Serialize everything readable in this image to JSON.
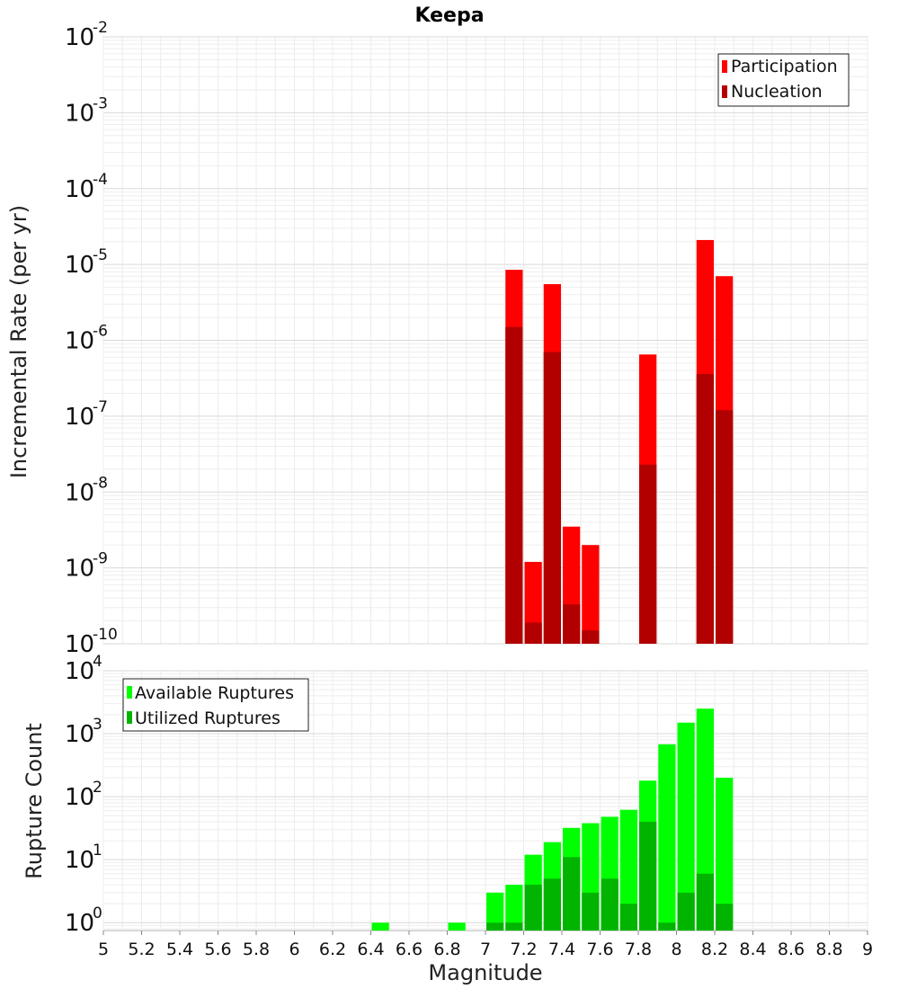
{
  "chart_data": [
    {
      "type": "bar",
      "title": "Keepa",
      "ylabel": "Incremental Rate (per yr)",
      "xlabel": "",
      "yscale": "log",
      "ylim": [
        1e-10,
        0.01
      ],
      "xlim": [
        5,
        9
      ],
      "bin_width": 0.1,
      "y_tick_labels": [
        {
          "base": "10",
          "exp": "-2"
        },
        {
          "base": "10",
          "exp": "-3"
        },
        {
          "base": "10",
          "exp": "-4"
        },
        {
          "base": "10",
          "exp": "-5"
        },
        {
          "base": "10",
          "exp": "-6"
        },
        {
          "base": "10",
          "exp": "-7"
        },
        {
          "base": "10",
          "exp": "-8"
        },
        {
          "base": "10",
          "exp": "-9"
        },
        {
          "base": "10",
          "exp": "-10"
        }
      ],
      "legend_position": "top-right",
      "series": [
        {
          "name": "Participation",
          "color": "#ff0000",
          "x": [
            7.15,
            7.25,
            7.35,
            7.45,
            7.55,
            7.85,
            8.15,
            8.25
          ],
          "values": [
            8.5e-06,
            1.2e-09,
            5.5e-06,
            3.5e-09,
            2e-09,
            6.5e-07,
            2.1e-05,
            7e-06
          ]
        },
        {
          "name": "Nucleation",
          "color": "#b20000",
          "x": [
            7.15,
            7.25,
            7.35,
            7.45,
            7.55,
            7.85,
            8.15,
            8.25
          ],
          "values": [
            1.5e-06,
            1.9e-10,
            7e-07,
            3.3e-10,
            1.5e-10,
            2.3e-08,
            3.6e-07,
            1.2e-07
          ]
        }
      ]
    },
    {
      "type": "bar",
      "title": "",
      "ylabel": "Rupture Count",
      "xlabel": "Magnitude",
      "yscale": "log",
      "ylim": [
        0.75,
        10000
      ],
      "xlim": [
        5,
        9
      ],
      "bin_width": 0.1,
      "y_tick_labels": [
        {
          "base": "10",
          "exp": "4"
        },
        {
          "base": "10",
          "exp": "3"
        },
        {
          "base": "10",
          "exp": "2"
        },
        {
          "base": "10",
          "exp": "1"
        },
        {
          "base": "10",
          "exp": "0"
        }
      ],
      "x_tick_labels": [
        "5",
        "5.2",
        "5.4",
        "5.6",
        "5.8",
        "6",
        "6.2",
        "6.4",
        "6.6",
        "6.8",
        "7",
        "7.2",
        "7.4",
        "7.6",
        "7.8",
        "8",
        "8.2",
        "8.4",
        "8.6",
        "8.8",
        "9"
      ],
      "legend_position": "top-left",
      "series": [
        {
          "name": "Available Ruptures",
          "color": "#00ff00",
          "x": [
            6.45,
            6.85,
            7.05,
            7.15,
            7.25,
            7.35,
            7.45,
            7.55,
            7.65,
            7.75,
            7.85,
            7.95,
            8.05,
            8.15,
            8.25
          ],
          "values": [
            1,
            1,
            3,
            4,
            12,
            19,
            32,
            38,
            48,
            62,
            180,
            680,
            1500,
            2500,
            200
          ]
        },
        {
          "name": "Utilized Ruptures",
          "color": "#00b400",
          "x": [
            7.05,
            7.15,
            7.25,
            7.35,
            7.45,
            7.55,
            7.65,
            7.75,
            7.85,
            7.95,
            8.05,
            8.15,
            8.25
          ],
          "values": [
            1,
            1,
            4,
            5,
            11,
            3,
            5,
            2,
            40,
            1,
            3,
            6,
            2
          ]
        }
      ]
    }
  ]
}
